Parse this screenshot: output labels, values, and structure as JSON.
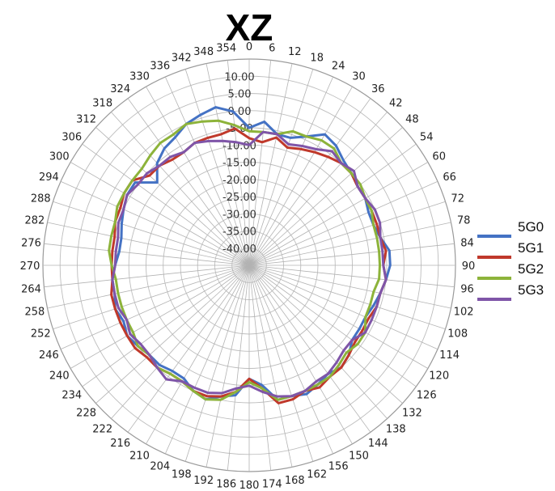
{
  "chart_data": {
    "type": "line",
    "subtype": "radar",
    "title": "XZ",
    "angle_labels": [
      "0",
      "6",
      "12",
      "18",
      "24",
      "30",
      "36",
      "42",
      "48",
      "54",
      "60",
      "66",
      "72",
      "78",
      "84",
      "90",
      "96",
      "102",
      "108",
      "114",
      "120",
      "126",
      "132",
      "138",
      "144",
      "150",
      "156",
      "162",
      "168",
      "174",
      "180",
      "186",
      "192",
      "198",
      "204",
      "210",
      "216",
      "222",
      "228",
      "234",
      "240",
      "246",
      "252",
      "258",
      "264",
      "270",
      "276",
      "282",
      "288",
      "294",
      "300",
      "306",
      "312",
      "318",
      "324",
      "330",
      "336",
      "342",
      "348",
      "354"
    ],
    "radial_ticks": [
      "10.00",
      "5.00",
      "0.00",
      "-5.00",
      "-10.00",
      "-15.00",
      "-20.00",
      "-25.00",
      "-30.00",
      "-35.00",
      "-40.00"
    ],
    "rlim": [
      -40,
      10
    ],
    "grid": true,
    "legend_position": "right",
    "series": [
      {
        "name": "5G0",
        "color": "#4472C4",
        "values": [
          -5,
          -3,
          -6,
          -6,
          -4,
          -1,
          -2,
          -4,
          -5,
          -6,
          -6,
          -7,
          -7,
          -6,
          -4,
          -4,
          -5,
          -6,
          -7,
          -8,
          -8,
          -8,
          -6,
          -5,
          -6,
          -5,
          -4,
          -5,
          -5,
          -10,
          -12,
          -7,
          -6,
          -4,
          -5,
          -7,
          -7,
          -6,
          -6,
          -5,
          -4,
          -5,
          -4,
          -5,
          -5,
          -6,
          -7,
          -7,
          -6,
          -5,
          -4,
          -4,
          -9,
          -5,
          -3,
          -2,
          0,
          1,
          2,
          0
        ]
      },
      {
        "name": "5G1",
        "color": "#C0392B",
        "values": [
          -8,
          -9,
          -7,
          -9,
          -8,
          -7,
          -6,
          -5,
          -5,
          -6,
          -6,
          -6,
          -6,
          -6,
          -5,
          -6,
          -5,
          -6,
          -6,
          -7,
          -7,
          -7,
          -6,
          -5,
          -5,
          -4,
          -5,
          -4,
          -4,
          -9,
          -12,
          -8,
          -6,
          -5,
          -5,
          -6,
          -6,
          -5,
          -5,
          -4,
          -4,
          -4,
          -4,
          -4,
          -5,
          -5,
          -5,
          -5,
          -4,
          -4,
          -3,
          -3,
          -6,
          -6,
          -7,
          -7,
          -6,
          -6,
          -6,
          -5
        ]
      },
      {
        "name": "5G2",
        "color": "#8DB33A",
        "values": [
          -6,
          -6,
          -6,
          -4,
          -4,
          -3,
          -3,
          -5,
          -5,
          -5,
          -6,
          -6,
          -7,
          -7,
          -7,
          -7,
          -7,
          -8,
          -8,
          -8,
          -6,
          -6,
          -7,
          -6,
          -5,
          -5,
          -5,
          -5,
          -5,
          -9,
          -11,
          -8,
          -5,
          -4,
          -5,
          -6,
          -6,
          -5,
          -6,
          -5,
          -6,
          -6,
          -6,
          -6,
          -6,
          -5,
          -4,
          -4,
          -4,
          -3,
          -3,
          -3,
          -3,
          -2,
          -1,
          -1,
          0,
          -1,
          -2,
          -4
        ]
      },
      {
        "name": "5G3",
        "color": "#7F55A8",
        "values": [
          -10,
          -6,
          -6,
          -8,
          -7,
          -6,
          -4,
          -5,
          -4,
          -6,
          -6,
          -5,
          -5,
          -6,
          -6,
          -6,
          -5,
          -6,
          -6,
          -6,
          -6,
          -8,
          -8,
          -7,
          -6,
          -6,
          -5,
          -5,
          -6,
          -8,
          -10,
          -9,
          -7,
          -6,
          -6,
          -6,
          -4,
          -5,
          -6,
          -6,
          -5,
          -6,
          -5,
          -5,
          -5,
          -6,
          -6,
          -6,
          -5,
          -5,
          -4,
          -5,
          -5,
          -6,
          -6,
          -7,
          -6,
          -7,
          -8,
          -9
        ]
      }
    ]
  }
}
